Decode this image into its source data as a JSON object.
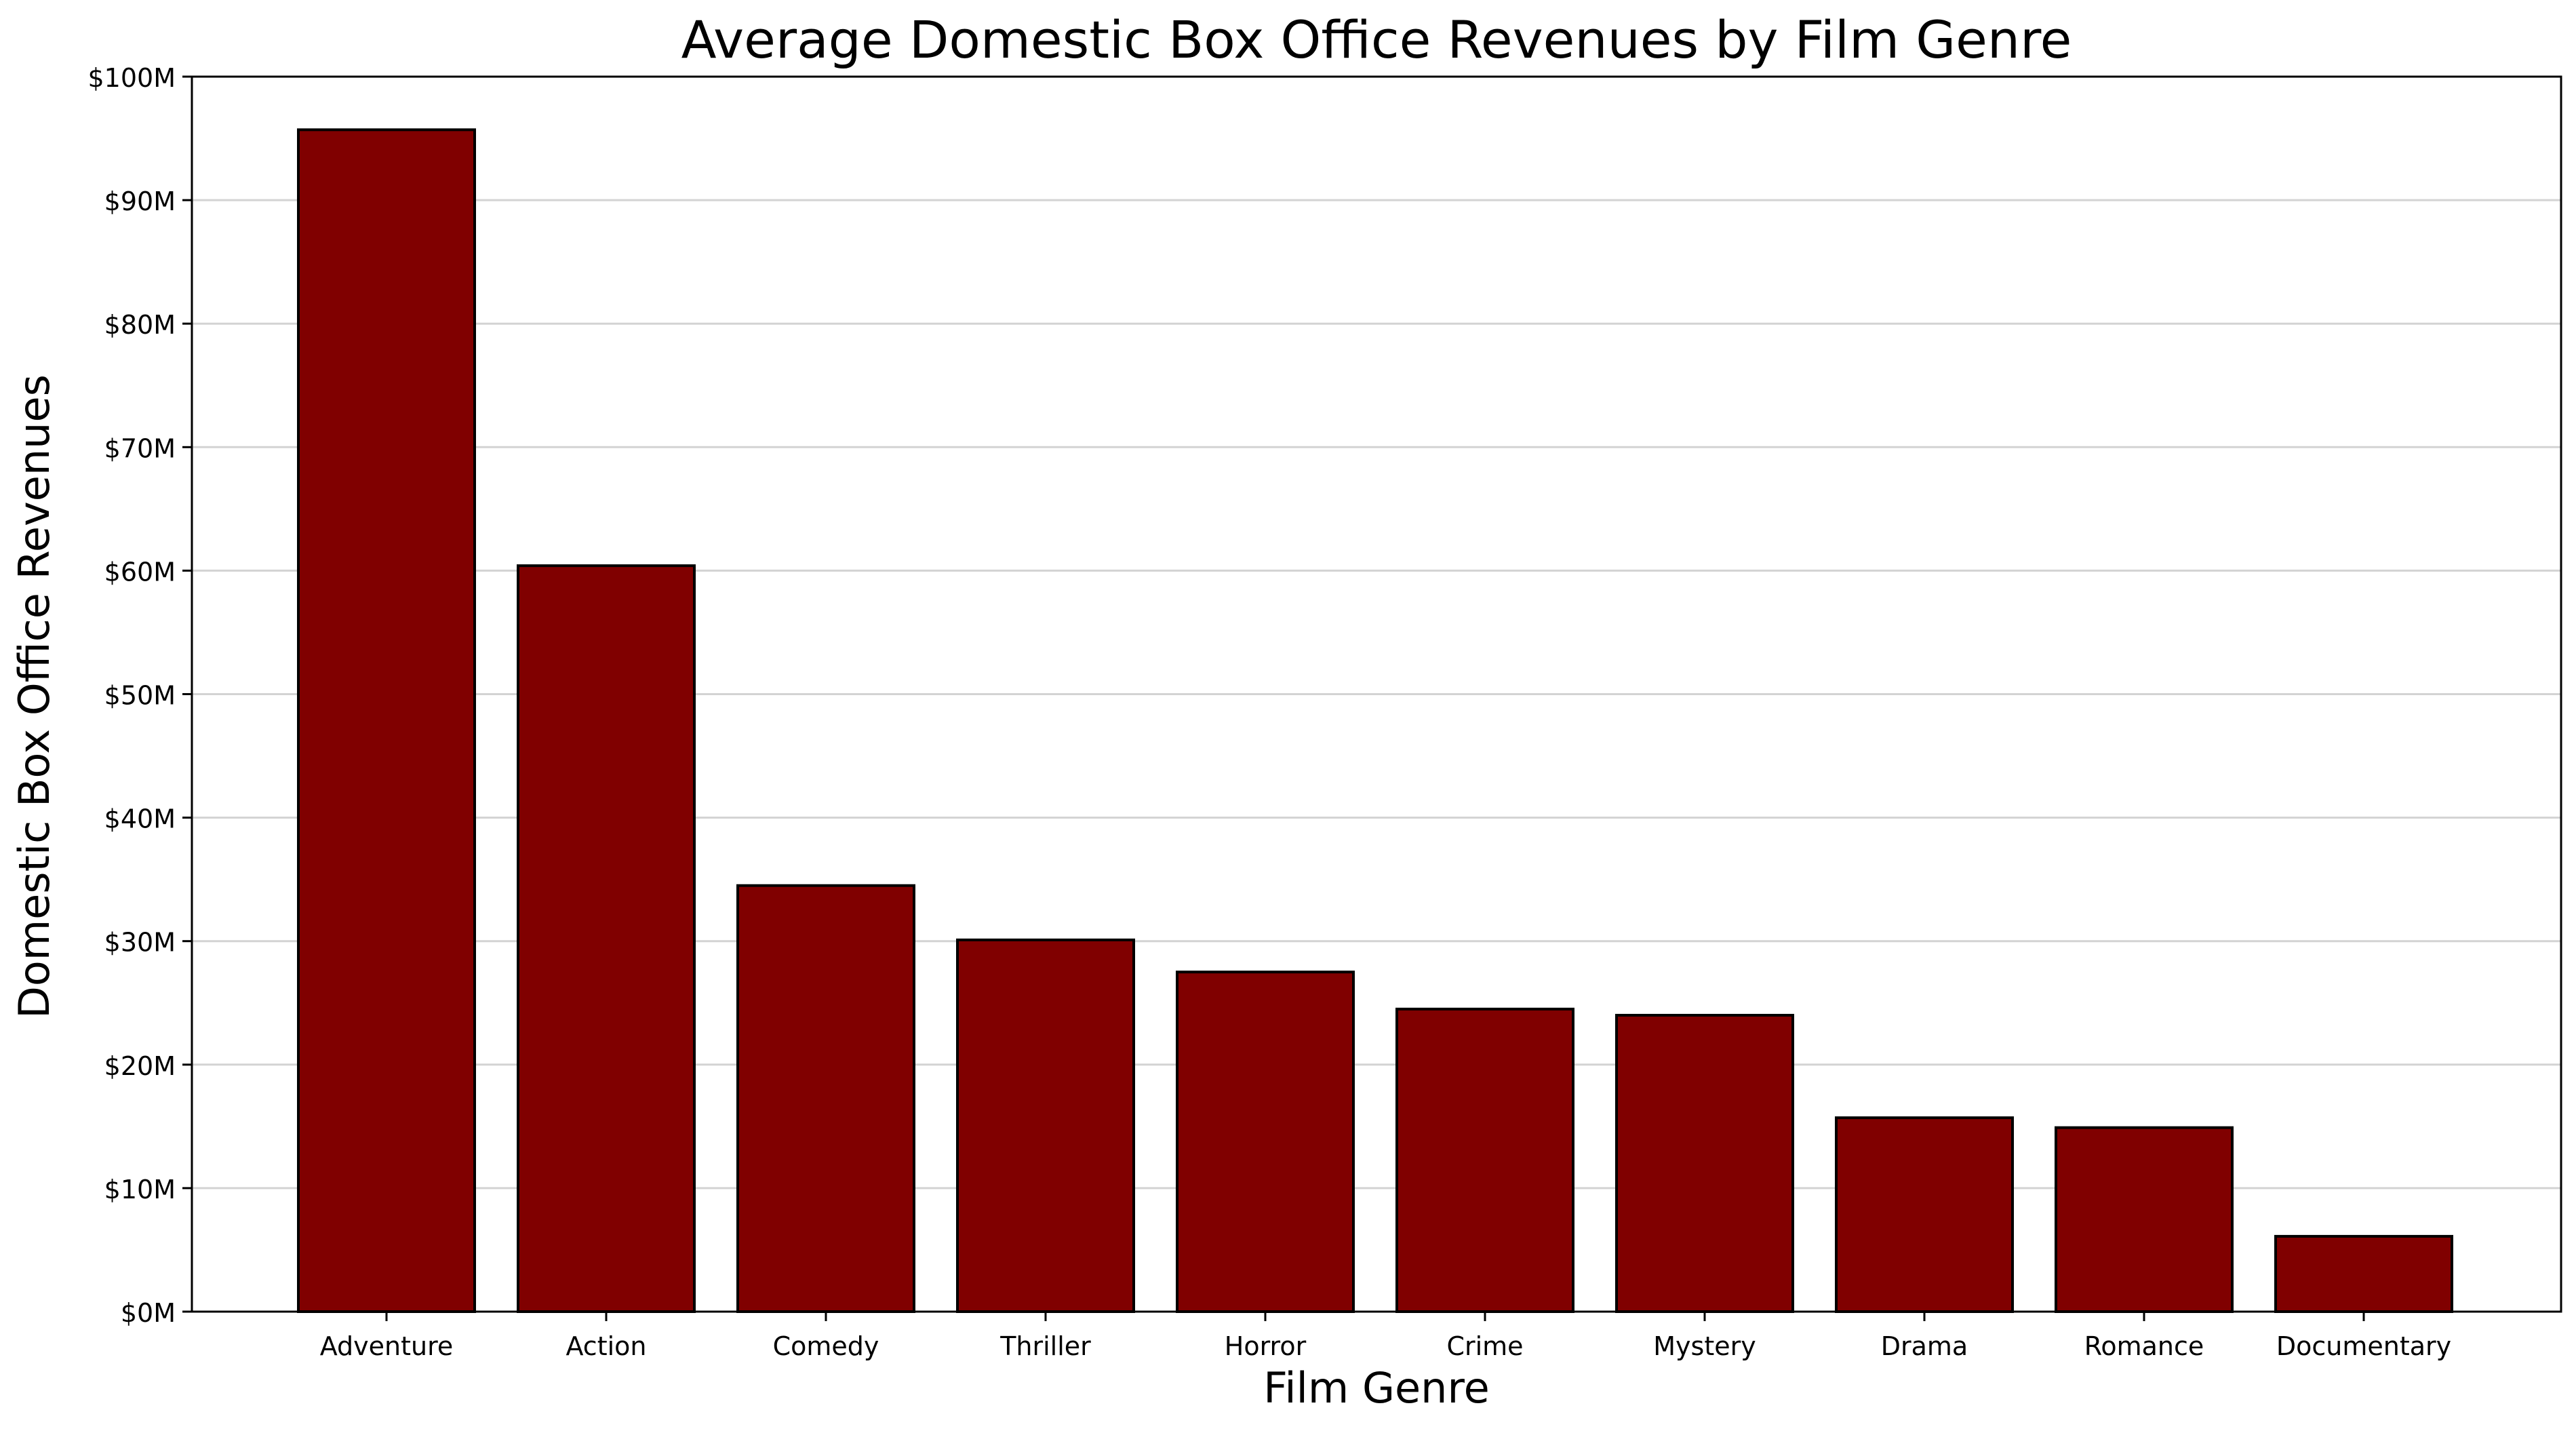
{
  "chart_data": {
    "type": "bar",
    "title": "Average Domestic Box Office Revenues by Film Genre",
    "xlabel": "Film Genre",
    "ylabel": "Domestic Box Office Revenues",
    "categories": [
      "Adventure",
      "Action",
      "Comedy",
      "Thriller",
      "Horror",
      "Crime",
      "Mystery",
      "Drama",
      "Romance",
      "Documentary"
    ],
    "values": [
      95.7,
      60.4,
      34.5,
      30.1,
      27.5,
      24.5,
      24.0,
      15.7,
      14.9,
      6.1
    ],
    "value_unit": "$M",
    "ylim": [
      0,
      100
    ],
    "yticks": [
      0,
      10,
      20,
      30,
      40,
      50,
      60,
      70,
      80,
      90,
      100
    ],
    "ytick_labels": [
      "$0M",
      "$10M",
      "$20M",
      "$30M",
      "$40M",
      "$50M",
      "$60M",
      "$70M",
      "$80M",
      "$90M",
      "$100M"
    ],
    "grid": "horizontal",
    "legend": "none",
    "bar_color": "#800000",
    "edge_color": "#000000",
    "grid_color": "#d3d3d3"
  }
}
